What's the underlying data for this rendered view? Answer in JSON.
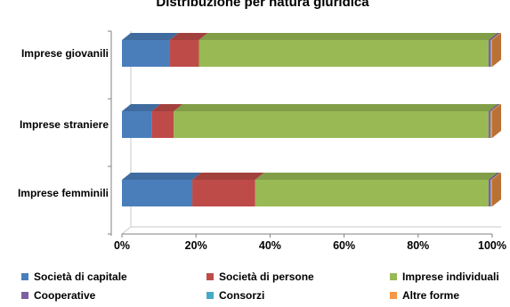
{
  "chart_data": {
    "type": "bar",
    "orientation": "horizontal",
    "stacked": "percent",
    "title": "Distribuzione per natura giuridica",
    "categories": [
      "Imprese giovanili",
      "Imprese straniere",
      "Imprese femminili"
    ],
    "series": [
      {
        "name": "Società di capitale",
        "color": "#4a7ebb",
        "values": [
          13,
          8,
          19
        ]
      },
      {
        "name": "Società di persone",
        "color": "#be4b48",
        "values": [
          8,
          6,
          17
        ]
      },
      {
        "name": "Imprese individuali",
        "color": "#98b954",
        "values": [
          79,
          85,
          63
        ]
      },
      {
        "name": "Cooperative",
        "color": "#7d60a0",
        "values": [
          0.6,
          0.5,
          0.6
        ]
      },
      {
        "name": "Consorzi",
        "color": "#46aac5",
        "values": [
          0.1,
          0.1,
          0.1
        ]
      },
      {
        "name": "Altre forme",
        "color": "#f79646",
        "values": [
          0.3,
          0.4,
          0.3
        ]
      }
    ],
    "xlim": [
      0,
      100
    ],
    "xticks": [
      "0%",
      "20%",
      "40%",
      "60%",
      "80%",
      "100%"
    ],
    "grid": false,
    "legend_position": "bottom"
  }
}
